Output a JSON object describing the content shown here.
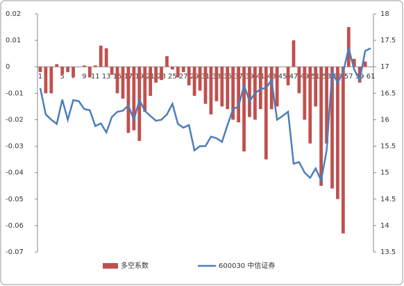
{
  "chart_data": {
    "type": "bar",
    "categories": [
      "1",
      null,
      "3",
      null,
      "5",
      null,
      "7",
      null,
      "9",
      null,
      "11",
      null,
      "13",
      null,
      "15",
      null,
      "17",
      null,
      "19",
      null,
      "21",
      null,
      "23",
      null,
      "25",
      null,
      "27",
      null,
      "29",
      null,
      "31",
      null,
      "33",
      null,
      "35",
      null,
      "37",
      null,
      "39",
      null,
      "41",
      null,
      "43",
      null,
      "45",
      null,
      "47",
      null,
      "49",
      null,
      "51",
      null,
      "53",
      null,
      "55",
      null,
      "57",
      null,
      "59",
      null,
      "61"
    ],
    "series": [
      {
        "name": "多空系数",
        "type": "bar",
        "color": "#c0504d",
        "values": [
          -0.002,
          -0.01,
          -0.01,
          0.001,
          -0.003,
          -0.002,
          -0.004,
          0,
          0.0005,
          -0.004,
          0.0005,
          0.008,
          0.007,
          -0.003,
          -0.01,
          -0.012,
          -0.025,
          -0.024,
          -0.028,
          -0.017,
          -0.011,
          -0.006,
          -0.005,
          0.004,
          -0.001,
          -0.004,
          -0.002,
          -0.007,
          -0.011,
          -0.009,
          -0.014,
          -0.018,
          -0.013,
          -0.015,
          -0.016,
          -0.02,
          -0.021,
          -0.032,
          -0.019,
          -0.02,
          -0.016,
          -0.035,
          -0.016,
          -0.015,
          0,
          -0.007,
          0.01,
          -0.01,
          -0.02,
          -0.029,
          -0.015,
          -0.045,
          -0.029,
          -0.046,
          -0.05,
          -0.063,
          0.015,
          0.003,
          -0.006,
          0.002,
          0
        ]
      },
      {
        "name": "600030 中信证券",
        "type": "line",
        "axis": "y2",
        "color": "#4a7ebb",
        "values": [
          16.6,
          16.1,
          16.0,
          15.92,
          16.38,
          16.0,
          16.37,
          16.35,
          16.2,
          16.18,
          15.88,
          15.93,
          15.76,
          16.05,
          16.15,
          16.17,
          16.27,
          16.0,
          16.37,
          16.17,
          16.07,
          15.98,
          16.0,
          16.1,
          16.3,
          15.92,
          15.85,
          15.9,
          15.42,
          15.5,
          15.5,
          15.68,
          15.65,
          15.58,
          15.9,
          16.2,
          16.25,
          16.65,
          16.35,
          16.5,
          16.58,
          16.6,
          16.75,
          16.0,
          16.07,
          16.15,
          15.17,
          15.2,
          15.0,
          14.9,
          15.08,
          14.85,
          15.42,
          16.9,
          16.7,
          16.9,
          17.35,
          16.95,
          16.75,
          17.3,
          17.35
        ]
      }
    ],
    "ylim": [
      -0.07,
      0.02
    ],
    "yticks": [
      0.02,
      0.01,
      0,
      -0.01,
      -0.02,
      -0.03,
      -0.04,
      -0.05,
      -0.06,
      -0.07
    ],
    "y2lim": [
      13.5,
      18
    ],
    "y2ticks": [
      18,
      17.5,
      17,
      16.5,
      16,
      15.5,
      15,
      14.5,
      14,
      13.5
    ],
    "legend": "bottom"
  }
}
